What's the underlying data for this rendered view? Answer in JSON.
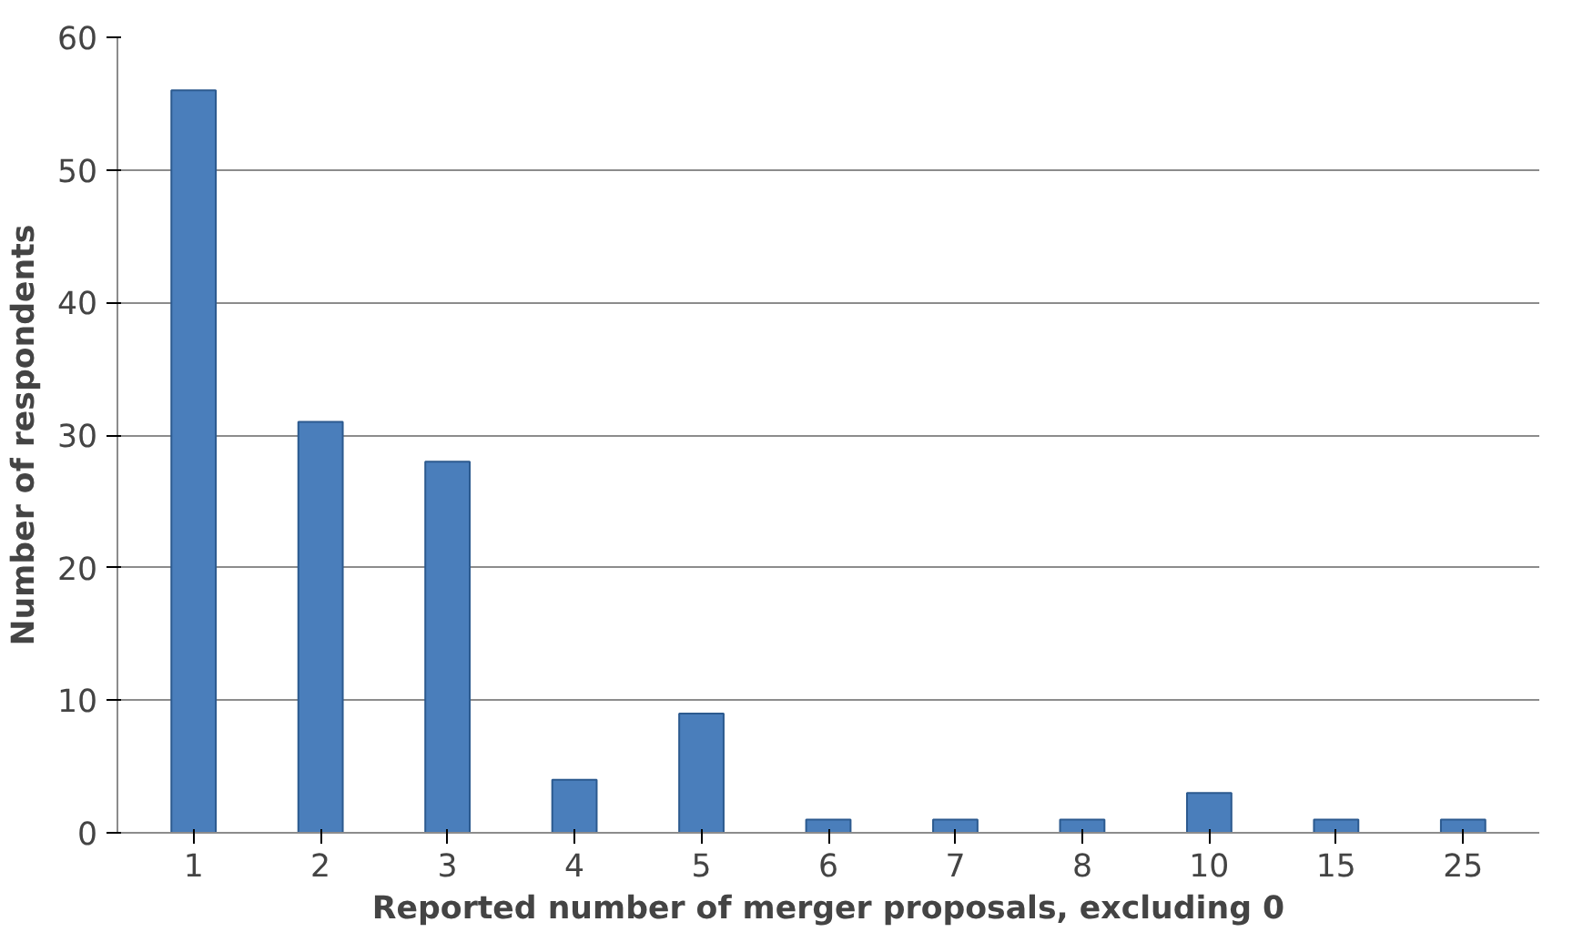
{
  "chart_data": {
    "type": "bar",
    "xlabel": "Reported number of merger proposals, excluding 0",
    "ylabel": "Number of respondents",
    "categories": [
      "1",
      "2",
      "3",
      "4",
      "5",
      "6",
      "7",
      "8",
      "10",
      "15",
      "25"
    ],
    "values": [
      56,
      31,
      28,
      4,
      9,
      1,
      1,
      1,
      3,
      1,
      1
    ],
    "color": "#4a7ebb",
    "ylim": [
      0,
      60
    ],
    "yticks": [
      0,
      10,
      20,
      30,
      40,
      50,
      60
    ],
    "grid": "y"
  }
}
